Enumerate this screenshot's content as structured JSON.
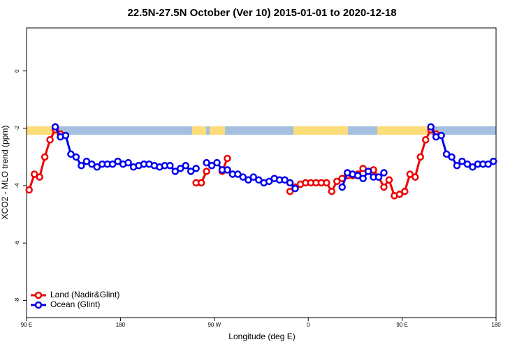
{
  "chart_data": {
    "type": "line",
    "title": "22.5N-27.5N October (Ver 10)   2015-01-01 to 2020-12-18",
    "xlabel": "Longitude (deg E)",
    "ylabel": "XCO2 - MLO trend (ppm)",
    "x": [
      92.5,
      97.5,
      102.5,
      107.5,
      112.5,
      117.5,
      122.5,
      127.5,
      132.5,
      137.5,
      142.5,
      147.5,
      152.5,
      157.5,
      162.5,
      167.5,
      172.5,
      177.5,
      182.5,
      187.5,
      192.5,
      197.5,
      202.5,
      207.5,
      212.5,
      217.5,
      222.5,
      227.5,
      232.5,
      237.5,
      242.5,
      247.5,
      252.5,
      257.5,
      262.5,
      267.5,
      272.5,
      277.5,
      282.5,
      287.5,
      292.5,
      297.5,
      302.5,
      307.5,
      312.5,
      317.5,
      322.5,
      327.5,
      332.5,
      337.5,
      342.5,
      347.5,
      352.5,
      357.5,
      362.5,
      367.5,
      372.5,
      377.5,
      382.5,
      387.5,
      392.5,
      397.5,
      402.5,
      407.5,
      412.5,
      417.5,
      422.5,
      427.5,
      432.5,
      437.5,
      442.5,
      447.5,
      452.5,
      457.5,
      462.5,
      467.5,
      472.5,
      477.5,
      482.5,
      487.5,
      492.5,
      497.5,
      502.5,
      507.5,
      512.5,
      517.5,
      522.5,
      527.5,
      532.5,
      537.5
    ],
    "series": [
      {
        "name": "Land (Nadir&Glint)",
        "color": "#ee0000",
        "values": [
          -4.15,
          -3.6,
          -3.7,
          -3.0,
          -2.4,
          -2.05,
          -2.2,
          null,
          null,
          null,
          null,
          null,
          null,
          null,
          null,
          null,
          null,
          null,
          null,
          null,
          null,
          null,
          null,
          null,
          null,
          null,
          null,
          null,
          null,
          null,
          null,
          null,
          -3.9,
          -3.9,
          -3.5,
          null,
          null,
          -3.5,
          -3.05,
          null,
          null,
          null,
          null,
          null,
          null,
          null,
          null,
          null,
          null,
          null,
          -4.2,
          -4.05,
          -3.95,
          -3.9,
          -3.9,
          -3.9,
          -3.9,
          -3.9,
          -4.2,
          -3.85,
          -3.75,
          -3.65,
          -3.65,
          -3.6,
          -3.4,
          -3.5,
          -3.45,
          -3.7,
          -4.05,
          -3.8,
          -4.35,
          -4.3,
          -4.2,
          -3.6,
          -3.7,
          -3.0,
          -2.4,
          -2.05,
          -2.2,
          null,
          null,
          null,
          null,
          null,
          null,
          null,
          null,
          null,
          null,
          null
        ]
      },
      {
        "name": "Ocean (Glint)",
        "color": "#0000ee",
        "values": [
          null,
          null,
          null,
          null,
          null,
          -1.95,
          -2.3,
          -2.25,
          -2.9,
          -3.0,
          -3.3,
          -3.15,
          -3.25,
          -3.35,
          -3.25,
          -3.25,
          -3.25,
          -3.15,
          -3.25,
          -3.2,
          -3.35,
          -3.3,
          -3.25,
          -3.25,
          -3.3,
          -3.35,
          -3.3,
          -3.3,
          -3.5,
          -3.4,
          -3.3,
          -3.5,
          -3.4,
          null,
          -3.2,
          -3.3,
          -3.2,
          -3.45,
          -3.45,
          -3.6,
          -3.6,
          -3.7,
          -3.8,
          -3.7,
          -3.8,
          -3.9,
          -3.85,
          -3.75,
          -3.8,
          -3.8,
          -3.9,
          -4.1,
          null,
          null,
          null,
          null,
          null,
          null,
          null,
          null,
          -4.05,
          -3.55,
          -3.6,
          -3.65,
          -3.75,
          -3.5,
          -3.7,
          -3.7,
          -3.55,
          null,
          null,
          null,
          null,
          null,
          null,
          null,
          null,
          -1.95,
          -2.3,
          -2.25,
          -2.9,
          -3.0,
          -3.3,
          -3.15,
          -3.25,
          -3.35,
          -3.25,
          -3.25,
          -3.25,
          -3.15
        ]
      }
    ],
    "xlim": [
      90,
      540
    ],
    "ylim": [
      -8.6,
      1.5
    ],
    "xticks": [
      {
        "value": 90,
        "label": "90 E"
      },
      180,
      {
        "value": 270,
        "label": "90 W"
      },
      {
        "value": 360,
        "label": "0"
      },
      {
        "value": 450,
        "label": "90 E"
      },
      {
        "value": 540,
        "label": "180"
      }
    ],
    "yticks": [
      0,
      -2,
      -4,
      -6,
      -8
    ],
    "legend": "bottom-left"
  }
}
